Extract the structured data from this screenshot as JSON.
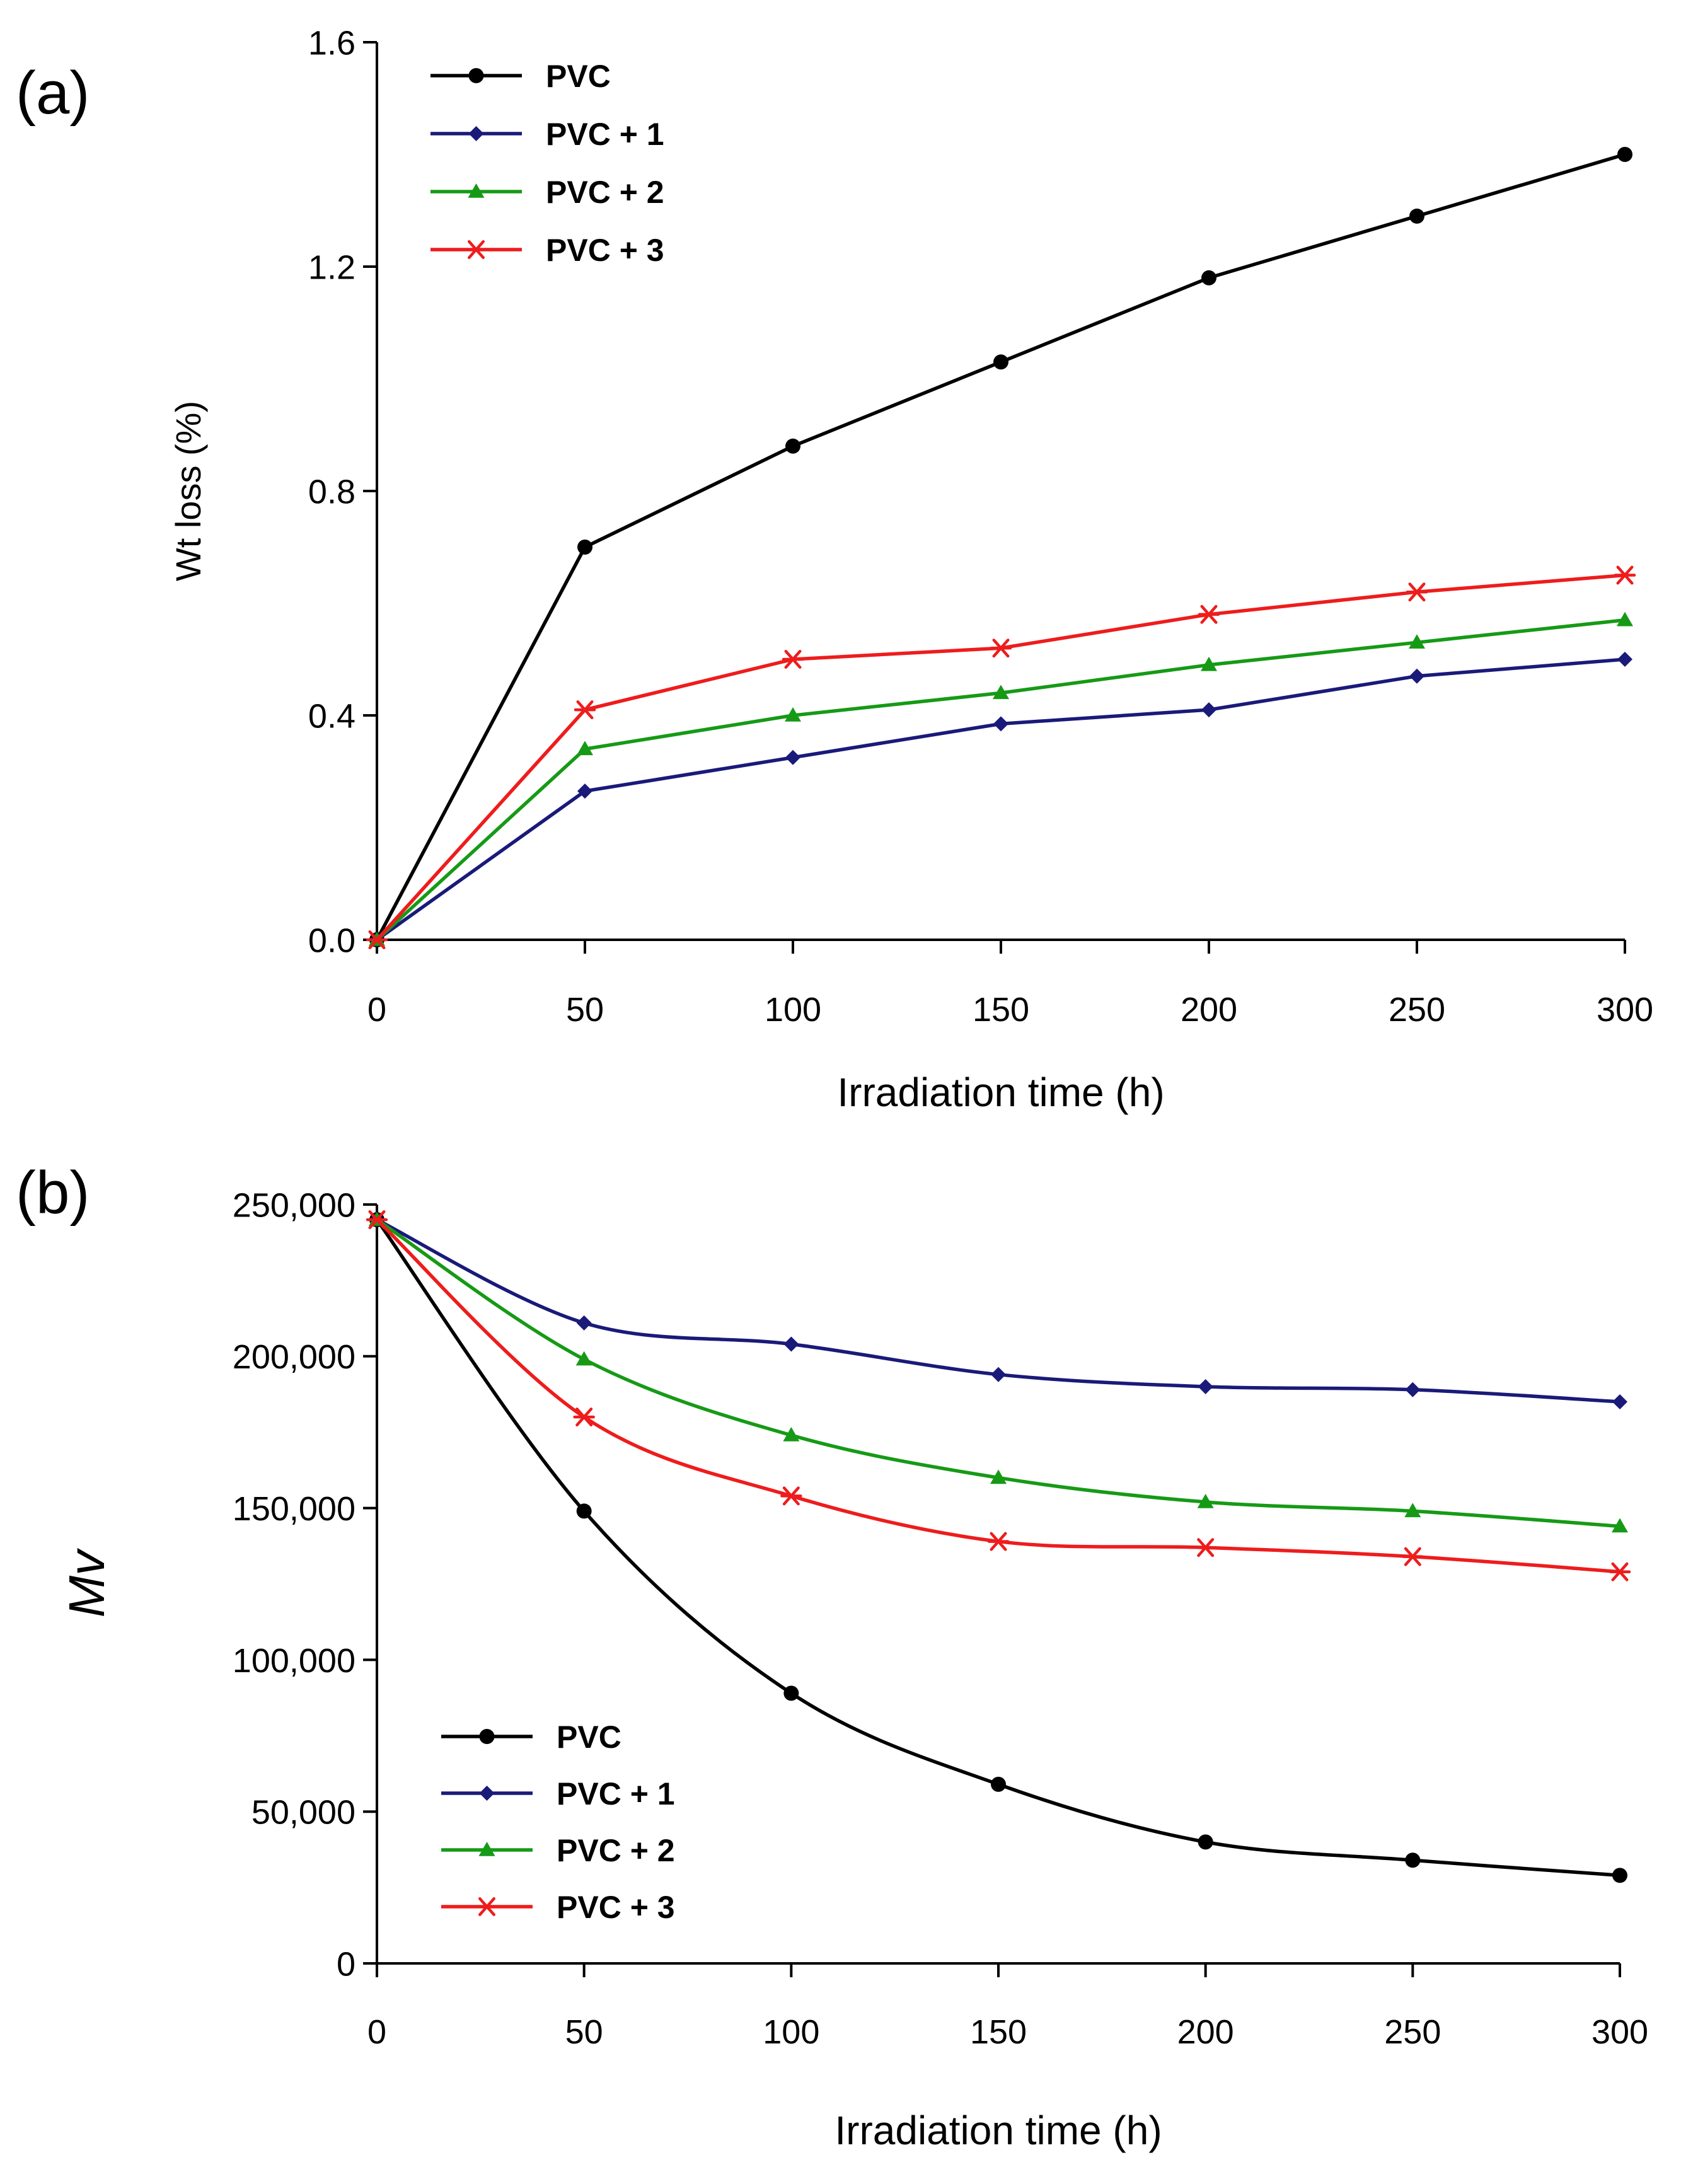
{
  "chart_data": [
    {
      "type": "line",
      "panel_label": "(a)",
      "xlabel": "Irradiation time (h)",
      "ylabel": "Wt loss (%)",
      "xlim": [
        0,
        300
      ],
      "ylim": [
        0,
        1.6
      ],
      "x_ticks": [
        0,
        50,
        100,
        150,
        200,
        250,
        300
      ],
      "x_tick_labels": [
        "0",
        "50",
        "100",
        "150",
        "200",
        "250",
        "300"
      ],
      "y_ticks": [
        0,
        0.4,
        0.8,
        1.2,
        1.6
      ],
      "y_tick_labels": [
        "0.0",
        "0.4",
        "0.8",
        "1.2",
        "1.6"
      ],
      "legend_position": "top-left",
      "smooth": false,
      "x": [
        0,
        50,
        100,
        150,
        200,
        250,
        300
      ],
      "series": [
        {
          "name": "PVC",
          "color": "#000000",
          "marker": "circle",
          "values": [
            0,
            0.7,
            0.88,
            1.03,
            1.18,
            1.29,
            1.4
          ]
        },
        {
          "name": "PVC + 1",
          "color": "#1a1a7a",
          "marker": "diamond",
          "values": [
            0,
            0.265,
            0.325,
            0.385,
            0.41,
            0.47,
            0.5
          ]
        },
        {
          "name": "PVC + 2",
          "color": "#169a16",
          "marker": "triangle",
          "values": [
            0,
            0.34,
            0.4,
            0.44,
            0.49,
            0.53,
            0.57
          ]
        },
        {
          "name": "PVC + 3",
          "color": "#ee1c1c",
          "marker": "star",
          "values": [
            0,
            0.41,
            0.5,
            0.52,
            0.58,
            0.62,
            0.65
          ]
        }
      ]
    },
    {
      "type": "line",
      "panel_label": "(b)",
      "xlabel": "Irradiation time (h)",
      "ylabel": "Mv",
      "xlim": [
        0,
        300
      ],
      "ylim": [
        0,
        250000
      ],
      "x_ticks": [
        0,
        50,
        100,
        150,
        200,
        250,
        300
      ],
      "x_tick_labels": [
        "0",
        "50",
        "100",
        "150",
        "200",
        "250",
        "300"
      ],
      "y_ticks": [
        0,
        50000,
        100000,
        150000,
        200000,
        250000
      ],
      "y_tick_labels": [
        "0",
        "50,000",
        "100,000",
        "150,000",
        "200,000",
        "250,000"
      ],
      "legend_position": "bottom-left",
      "smooth": true,
      "x": [
        0,
        50,
        100,
        150,
        200,
        250,
        300
      ],
      "series": [
        {
          "name": "PVC",
          "color": "#000000",
          "marker": "circle",
          "values": [
            245000,
            149000,
            89000,
            59000,
            40000,
            34000,
            29000
          ]
        },
        {
          "name": "PVC + 1",
          "color": "#1a1a7a",
          "marker": "diamond",
          "values": [
            245000,
            211000,
            204000,
            194000,
            190000,
            189000,
            185000
          ]
        },
        {
          "name": "PVC + 2",
          "color": "#169a16",
          "marker": "triangle",
          "values": [
            245000,
            199000,
            174000,
            160000,
            152000,
            149000,
            144000
          ]
        },
        {
          "name": "PVC + 3",
          "color": "#ee1c1c",
          "marker": "star",
          "values": [
            245000,
            180000,
            154000,
            139000,
            137000,
            134000,
            129000
          ]
        }
      ]
    }
  ]
}
